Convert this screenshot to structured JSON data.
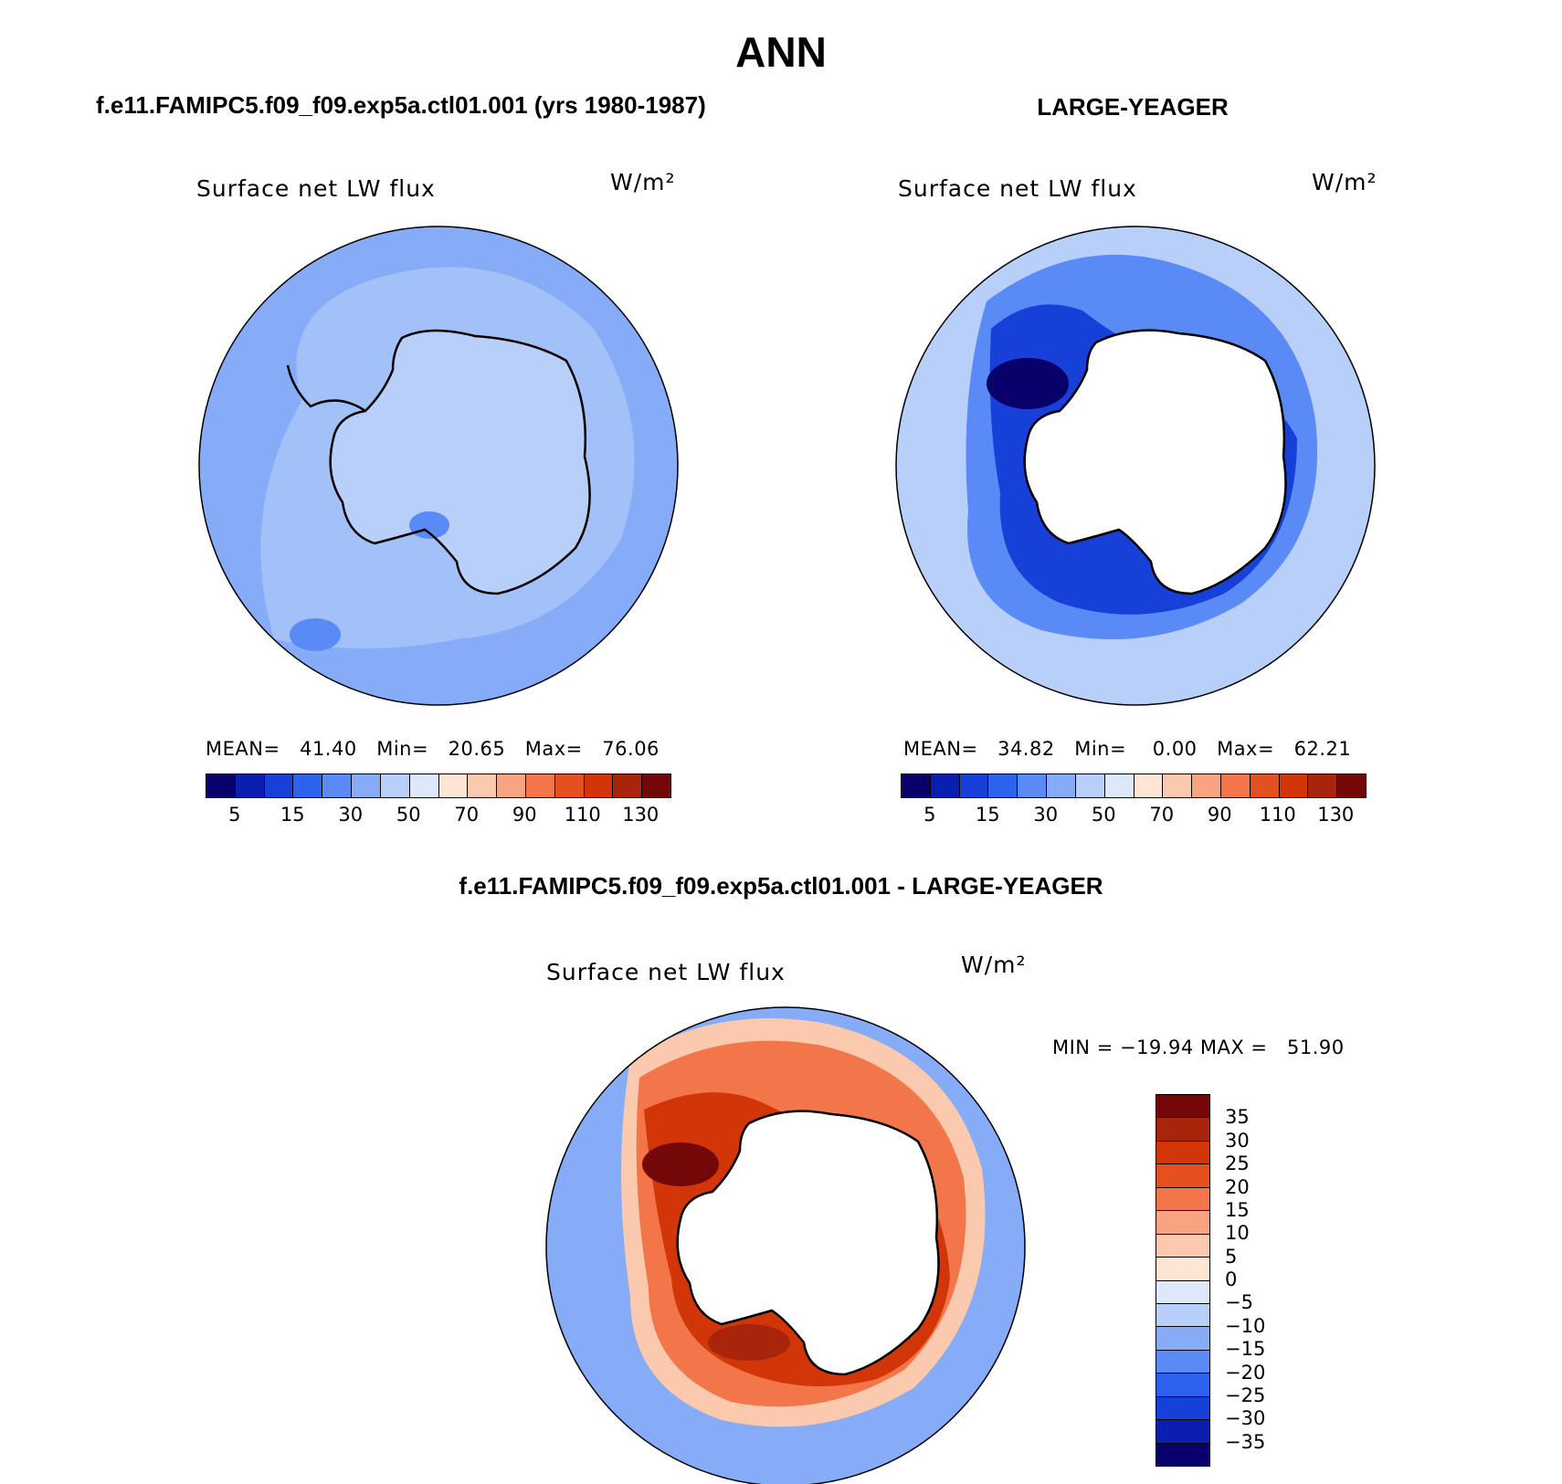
{
  "figure": {
    "season": "ANN",
    "left_case": "f.e11.FAMIPC5.f09_f09.exp5a.ctl01.001 (yrs 1980-1987)",
    "right_case": "LARGE-YEAGER",
    "diff_case": "f.e11.FAMIPC5.f09_f09.exp5a.ctl01.001 - LARGE-YEAGER"
  },
  "panels": {
    "left": {
      "variable": "Surface net LW flux",
      "unit": "W/m²",
      "stats_line": "MEAN=   41.40   Min=   20.65   Max=   76.06"
    },
    "right": {
      "variable": "Surface net LW flux",
      "unit": "W/m²",
      "stats_line": "MEAN=   34.82   Min=    0.00   Max=   62.21"
    },
    "diff": {
      "variable": "Surface net LW flux",
      "unit": "W/m²",
      "stats_line": "MIN = −19.94 MAX =   51.90"
    }
  },
  "colorbar_abs": {
    "labels": [
      "5",
      "15",
      "30",
      "50",
      "70",
      "90",
      "110",
      "130"
    ],
    "colors": [
      "#08006b",
      "#0a1fb0",
      "#1740d8",
      "#2b62ee",
      "#5a8af5",
      "#86acf8",
      "#b8cffa",
      "#dde9fb",
      "#fde6d4",
      "#fbc9ae",
      "#f8a482",
      "#f2764a",
      "#e5501f",
      "#d23608",
      "#a8240a",
      "#740707"
    ]
  },
  "colorbar_diff": {
    "labels": [
      "35",
      "30",
      "25",
      "20",
      "15",
      "10",
      "5",
      "0",
      "−5",
      "−10",
      "−15",
      "−20",
      "−25",
      "−30",
      "−35"
    ],
    "colors": [
      "#740707",
      "#a8240a",
      "#d23608",
      "#e5501f",
      "#f2764a",
      "#f8a482",
      "#fbc9ae",
      "#fde6d4",
      "#dde9fb",
      "#b8cffa",
      "#86acf8",
      "#5a8af5",
      "#2b62ee",
      "#1740d8",
      "#0a1fb0",
      "#08006b"
    ]
  },
  "map_colors": {
    "left_base": "#86acf8",
    "left_land": "#b8cffa",
    "right_base": "#b8cffa",
    "right_ring": "#5a8af5",
    "right_deep": "#1740d8",
    "diff_base": "#86acf8",
    "diff_ring_outer": "#fbc9ae",
    "diff_ring_mid": "#f2764a",
    "diff_ring_inner": "#d23608",
    "diff_deep": "#740707"
  }
}
